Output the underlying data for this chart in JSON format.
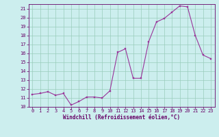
{
  "x": [
    0,
    1,
    2,
    3,
    4,
    5,
    6,
    7,
    8,
    9,
    10,
    11,
    12,
    13,
    14,
    15,
    16,
    17,
    18,
    19,
    20,
    21,
    22,
    23
  ],
  "y": [
    11.4,
    11.5,
    11.7,
    11.3,
    11.5,
    10.2,
    10.6,
    11.1,
    11.1,
    11.0,
    11.8,
    16.1,
    16.5,
    13.2,
    13.2,
    17.3,
    19.5,
    19.9,
    20.6,
    21.3,
    21.2,
    18.0,
    15.8,
    15.4
  ],
  "line_color": "#993399",
  "marker_color": "#993399",
  "bg_color": "#cceeee",
  "grid_color": "#99ccbb",
  "xlabel": "Windchill (Refroidissement éolien,°C)",
  "xlim": [
    -0.5,
    23.5
  ],
  "ylim": [
    10,
    21.5
  ],
  "yticks": [
    10,
    11,
    12,
    13,
    14,
    15,
    16,
    17,
    18,
    19,
    20,
    21
  ],
  "xticks": [
    0,
    1,
    2,
    3,
    4,
    5,
    6,
    7,
    8,
    9,
    10,
    11,
    12,
    13,
    14,
    15,
    16,
    17,
    18,
    19,
    20,
    21,
    22,
    23
  ],
  "tick_color": "#660066",
  "label_color": "#660066",
  "spine_color": "#660066",
  "tick_fontsize": 5.0,
  "xlabel_fontsize": 5.5
}
